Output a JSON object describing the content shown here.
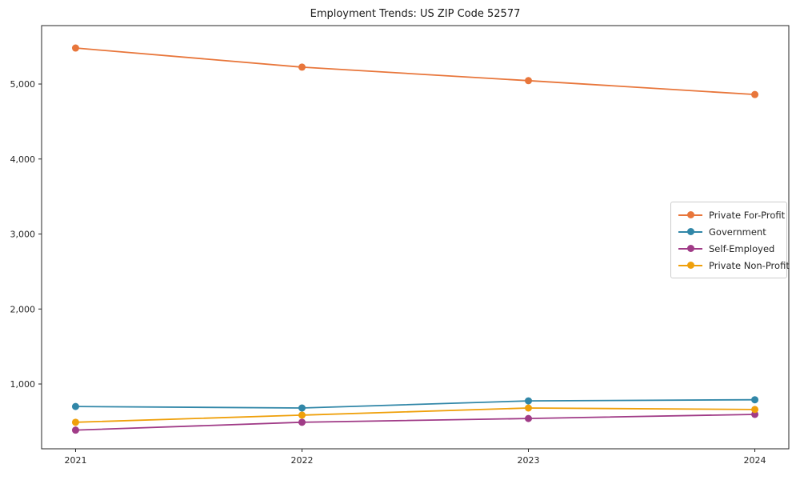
{
  "page": {
    "title": "Employment Trends: US ZIP Code 52577"
  },
  "chart_data": {
    "type": "line",
    "title": "Employment Trends: US ZIP Code 52577",
    "xlabel": "",
    "ylabel": "",
    "x": [
      2021,
      2022,
      2023,
      2024
    ],
    "xtick_labels": [
      "2021",
      "2022",
      "2023",
      "2024"
    ],
    "yticks": [
      1000,
      2000,
      3000,
      4000,
      5000
    ],
    "ytick_labels": [
      "1,000",
      "2,000",
      "3,000",
      "4,000",
      "5,000"
    ],
    "xlim": [
      2020.85,
      2024.15
    ],
    "ylim": [
      136,
      5779
    ],
    "grid": false,
    "legend_position": "center right",
    "frame": true,
    "axis_color": "#262626",
    "series": [
      {
        "name": "Private For-Profit",
        "color": "#e8763b",
        "values": [
          5480,
          5225,
          5045,
          4860
        ]
      },
      {
        "name": "Government",
        "color": "#3187a8",
        "values": [
          700,
          680,
          775,
          790
        ]
      },
      {
        "name": "Self-Employed",
        "color": "#a03b87",
        "values": [
          385,
          490,
          540,
          595
        ]
      },
      {
        "name": "Private Non-Profit",
        "color": "#efa00b",
        "values": [
          490,
          585,
          680,
          660
        ]
      }
    ]
  }
}
